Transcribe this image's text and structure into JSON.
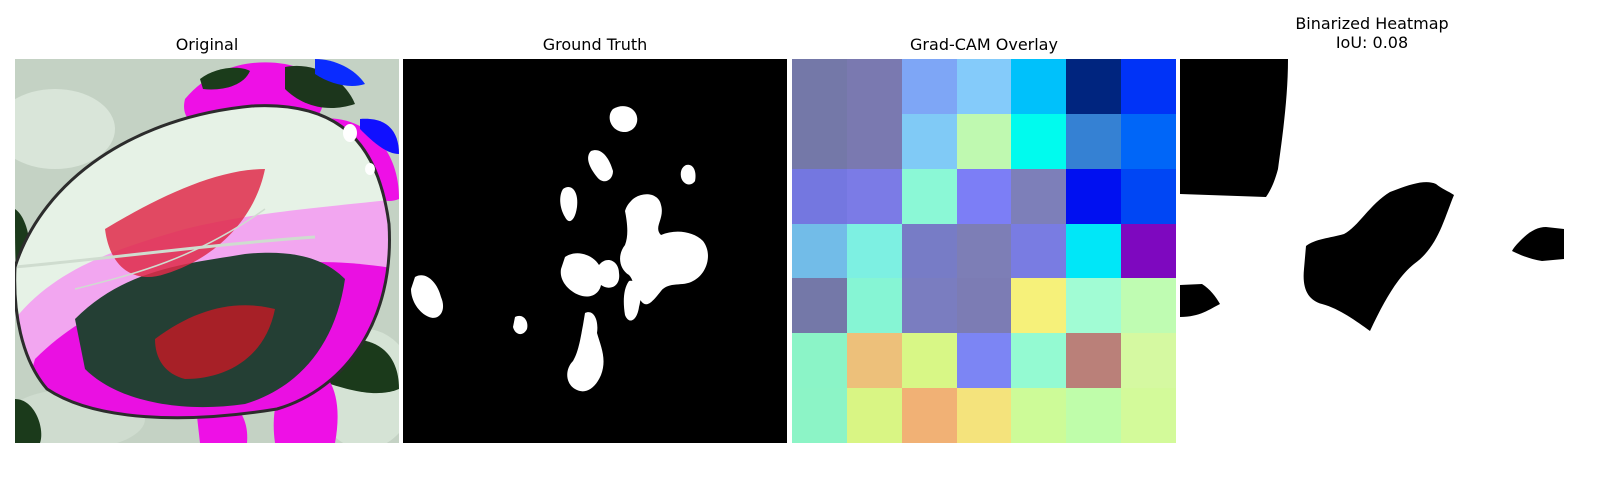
{
  "panels": {
    "original": {
      "title": "Original"
    },
    "ground_truth": {
      "title": "Ground Truth"
    },
    "gradcam": {
      "title": "Grad-CAM Overlay",
      "grid_colors": [
        [
          "#7478a8",
          "#7a79b0",
          "#7ea6f6",
          "#84cbfa",
          "#00c1fb",
          "#00257f",
          "#0033f7"
        ],
        [
          "#7478a8",
          "#7a79b0",
          "#80caf6",
          "#bff9b0",
          "#00fbee",
          "#3581d3",
          "#0066f8"
        ],
        [
          "#7477e0",
          "#7b7be6",
          "#8bf8d6",
          "#7c7ef6",
          "#7d7fb9",
          "#0010f1",
          "#0046f4"
        ],
        [
          "#72bce8",
          "#7df0e2",
          "#777cc6",
          "#7d7eb6",
          "#797ce2",
          "#00e7f8",
          "#7e08bf"
        ],
        [
          "#7478a8",
          "#86f5d4",
          "#7a7dc0",
          "#7c7cb4",
          "#f6f17a",
          "#a1fcd4",
          "#bffcb2"
        ],
        [
          "#8bf4c7",
          "#edc07a",
          "#d8f786",
          "#7c85f4",
          "#94fad2",
          "#ba8079",
          "#d5f9a1"
        ],
        [
          "#8cf4c6",
          "#d9f584",
          "#f1b175",
          "#f4e37c",
          "#cdfb98",
          "#bffdaa",
          "#d3fa9a"
        ]
      ]
    },
    "binarized": {
      "title_line1": "Binarized Heatmap",
      "title_line2": "IoU: 0.08"
    }
  }
}
